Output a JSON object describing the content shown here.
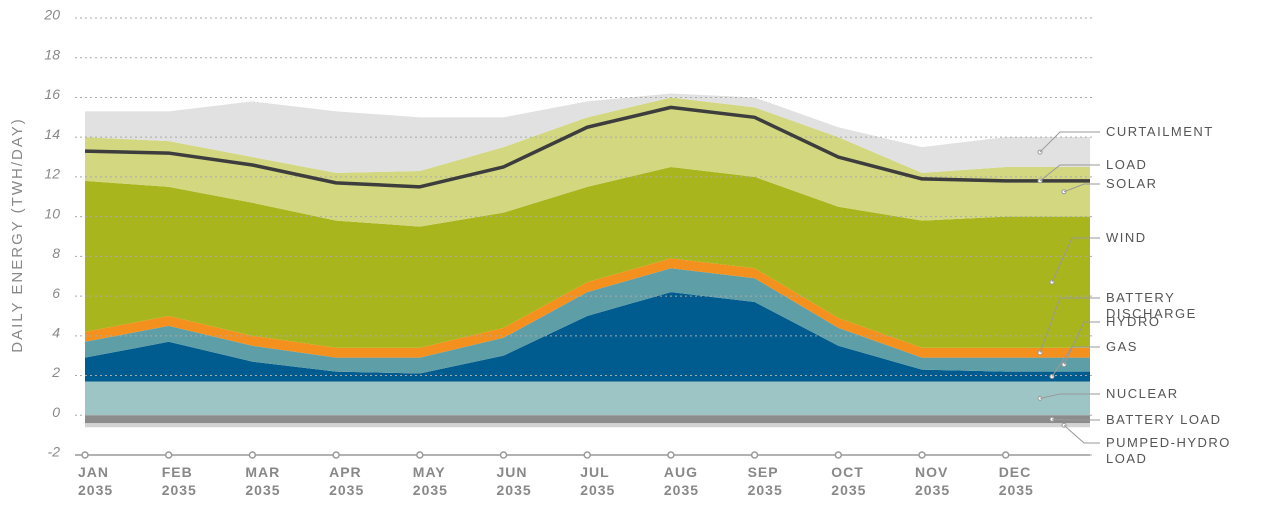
{
  "chart_data": {
    "type": "stacked_area",
    "y_axis_label": "DAILY ENERGY (TWH/DAY)",
    "categories": [
      "JAN 2035",
      "FEB 2035",
      "MAR 2035",
      "APR 2035",
      "MAY 2035",
      "JUN 2035",
      "JUL 2035",
      "AUG 2035",
      "SEP 2035",
      "OCT 2035",
      "NOV 2035",
      "DEC 2035"
    ],
    "ylim": [
      -2,
      20
    ],
    "yticks": [
      -2,
      0,
      2,
      4,
      6,
      8,
      10,
      12,
      14,
      16,
      18,
      20
    ],
    "grid": true,
    "series": [
      {
        "name": "NUCLEAR",
        "color": "#9ec5c6",
        "values": [
          1.7,
          1.7,
          1.7,
          1.7,
          1.7,
          1.7,
          1.7,
          1.7,
          1.7,
          1.7,
          1.7,
          1.7
        ]
      },
      {
        "name": "GAS",
        "color": "#005c8f",
        "values": [
          1.2,
          2.0,
          1.0,
          0.5,
          0.4,
          1.3,
          3.3,
          4.5,
          4.0,
          1.8,
          0.6,
          0.5
        ]
      },
      {
        "name": "HYDRO",
        "color": "#5e9ea6",
        "values": [
          0.8,
          0.8,
          0.8,
          0.7,
          0.8,
          0.9,
          1.2,
          1.2,
          1.2,
          0.9,
          0.6,
          0.7
        ]
      },
      {
        "name": "BATTERY DISCHARGE",
        "color": "#f4901e",
        "values": [
          0.5,
          0.5,
          0.5,
          0.5,
          0.5,
          0.5,
          0.5,
          0.5,
          0.5,
          0.5,
          0.5,
          0.5
        ]
      },
      {
        "name": "WIND",
        "color": "#a9b51d",
        "values": [
          7.6,
          6.5,
          6.7,
          6.4,
          6.1,
          5.8,
          4.8,
          4.6,
          4.6,
          5.6,
          6.4,
          6.6
        ]
      },
      {
        "name": "SOLAR",
        "color": "#d2d780",
        "values": [
          2.2,
          2.3,
          2.3,
          2.4,
          2.8,
          3.3,
          3.5,
          3.5,
          3.5,
          3.5,
          2.4,
          2.5
        ]
      },
      {
        "name": "CURTAILMENT",
        "color": "#e1e1e1",
        "values": [
          1.3,
          1.5,
          2.8,
          3.1,
          2.7,
          1.5,
          0.8,
          0.2,
          0.5,
          0.5,
          1.3,
          1.5
        ]
      },
      {
        "name": "BATTERY LOAD",
        "color": "#8c8c8c",
        "values": [
          -0.4,
          -0.4,
          -0.4,
          -0.4,
          -0.4,
          -0.4,
          -0.4,
          -0.4,
          -0.4,
          -0.4,
          -0.4,
          -0.4
        ]
      },
      {
        "name": "PUMPED-HYDRO LOAD",
        "color": "#d3d3d3",
        "values": [
          -0.2,
          -0.2,
          -0.2,
          -0.2,
          -0.2,
          -0.2,
          -0.2,
          -0.2,
          -0.2,
          -0.2,
          -0.2,
          -0.2
        ]
      },
      {
        "name": "LOAD",
        "color": "#3d3d3d",
        "type": "line",
        "values": [
          13.3,
          13.2,
          12.6,
          11.7,
          11.5,
          12.5,
          14.5,
          15.5,
          15.0,
          13.0,
          11.9,
          11.8
        ]
      }
    ]
  }
}
